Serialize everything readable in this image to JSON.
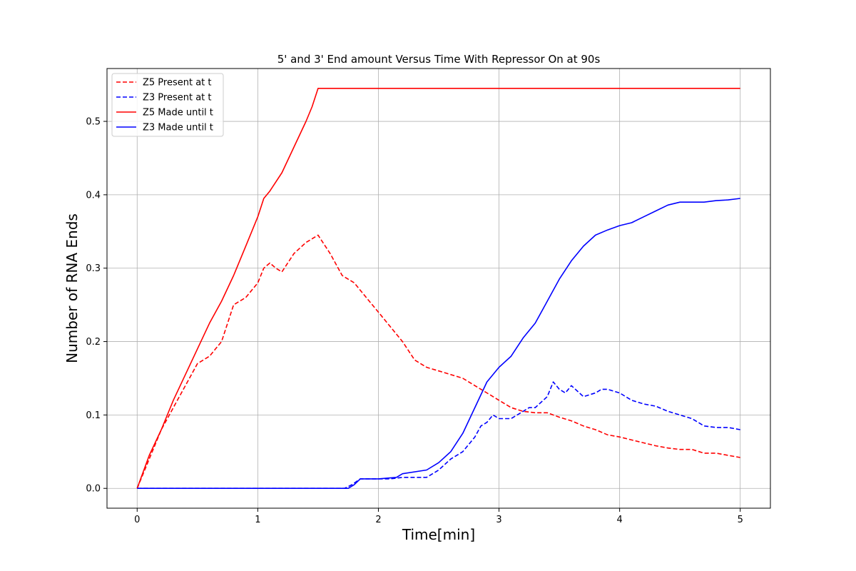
{
  "chart_data": {
    "type": "line",
    "title": "5' and 3' End amount Versus Time With Repressor On at 90s",
    "xlabel": "Time[min]",
    "ylabel": "Number of RNA Ends",
    "xlim": [
      -0.25,
      5.25
    ],
    "ylim": [
      -0.027,
      0.572
    ],
    "xticks": [
      0,
      1,
      2,
      3,
      4,
      5
    ],
    "xtick_labels": [
      "0",
      "1",
      "2",
      "3",
      "4",
      "5"
    ],
    "yticks": [
      0.0,
      0.1,
      0.2,
      0.3,
      0.4,
      0.5
    ],
    "ytick_labels": [
      "0.0",
      "0.1",
      "0.2",
      "0.3",
      "0.4",
      "0.5"
    ],
    "grid": true,
    "legend_position": "top-left",
    "series": [
      {
        "name": "Z5 Present at t",
        "color": "#ff0000",
        "style": "dashed",
        "x": [
          0,
          0.1,
          0.2,
          0.3,
          0.4,
          0.5,
          0.6,
          0.7,
          0.8,
          0.9,
          1.0,
          1.05,
          1.1,
          1.15,
          1.2,
          1.3,
          1.4,
          1.45,
          1.5,
          1.6,
          1.7,
          1.8,
          1.9,
          2.0,
          2.1,
          2.2,
          2.3,
          2.4,
          2.5,
          2.6,
          2.7,
          2.8,
          2.9,
          3.0,
          3.1,
          3.2,
          3.3,
          3.4,
          3.5,
          3.6,
          3.7,
          3.8,
          3.9,
          4.0,
          4.1,
          4.2,
          4.3,
          4.4,
          4.5,
          4.6,
          4.7,
          4.8,
          4.9,
          5.0
        ],
        "y": [
          0.0,
          0.04,
          0.08,
          0.11,
          0.14,
          0.17,
          0.18,
          0.2,
          0.25,
          0.26,
          0.28,
          0.3,
          0.307,
          0.3,
          0.295,
          0.32,
          0.335,
          0.34,
          0.345,
          0.32,
          0.29,
          0.28,
          0.26,
          0.24,
          0.22,
          0.2,
          0.175,
          0.165,
          0.16,
          0.155,
          0.15,
          0.14,
          0.13,
          0.12,
          0.11,
          0.105,
          0.103,
          0.103,
          0.097,
          0.092,
          0.085,
          0.08,
          0.073,
          0.07,
          0.066,
          0.062,
          0.058,
          0.055,
          0.053,
          0.053,
          0.048,
          0.048,
          0.045,
          0.042
        ]
      },
      {
        "name": "Z3 Present at t",
        "color": "#0000ff",
        "style": "dashed",
        "x": [
          0,
          1.72,
          1.78,
          1.85,
          2.0,
          2.1,
          2.2,
          2.4,
          2.45,
          2.5,
          2.6,
          2.7,
          2.8,
          2.85,
          2.9,
          2.95,
          3.0,
          3.1,
          3.2,
          3.25,
          3.3,
          3.4,
          3.45,
          3.5,
          3.55,
          3.6,
          3.7,
          3.8,
          3.85,
          3.9,
          4.0,
          4.1,
          4.2,
          4.3,
          4.4,
          4.5,
          4.6,
          4.7,
          4.8,
          4.9,
          5.0
        ],
        "y": [
          0.0,
          0.0,
          0.005,
          0.013,
          0.013,
          0.013,
          0.015,
          0.015,
          0.02,
          0.025,
          0.04,
          0.05,
          0.07,
          0.085,
          0.09,
          0.1,
          0.095,
          0.095,
          0.105,
          0.11,
          0.11,
          0.125,
          0.145,
          0.135,
          0.13,
          0.14,
          0.125,
          0.13,
          0.135,
          0.135,
          0.13,
          0.12,
          0.115,
          0.112,
          0.105,
          0.1,
          0.095,
          0.085,
          0.083,
          0.083,
          0.08
        ]
      },
      {
        "name": "Z5 Made until t",
        "color": "#ff0000",
        "style": "solid",
        "x": [
          0,
          0.1,
          0.2,
          0.3,
          0.4,
          0.5,
          0.6,
          0.7,
          0.8,
          0.9,
          1.0,
          1.05,
          1.1,
          1.2,
          1.3,
          1.4,
          1.45,
          1.5,
          2.0,
          3.0,
          4.0,
          5.0
        ],
        "y": [
          0.0,
          0.045,
          0.08,
          0.12,
          0.155,
          0.19,
          0.225,
          0.255,
          0.29,
          0.33,
          0.37,
          0.395,
          0.405,
          0.43,
          0.465,
          0.5,
          0.52,
          0.545,
          0.545,
          0.545,
          0.545,
          0.545
        ]
      },
      {
        "name": "Z3 Made until t",
        "color": "#0000ff",
        "style": "solid",
        "x": [
          0,
          1.75,
          1.8,
          1.85,
          2.0,
          2.15,
          2.2,
          2.4,
          2.5,
          2.6,
          2.7,
          2.8,
          2.9,
          3.0,
          3.1,
          3.2,
          3.3,
          3.4,
          3.5,
          3.6,
          3.7,
          3.8,
          3.9,
          4.0,
          4.1,
          4.2,
          4.3,
          4.4,
          4.5,
          4.6,
          4.7,
          4.8,
          4.9,
          5.0
        ],
        "y": [
          0.0,
          0.0,
          0.005,
          0.013,
          0.013,
          0.015,
          0.02,
          0.025,
          0.035,
          0.05,
          0.075,
          0.11,
          0.145,
          0.165,
          0.18,
          0.205,
          0.225,
          0.255,
          0.285,
          0.31,
          0.33,
          0.345,
          0.352,
          0.358,
          0.362,
          0.37,
          0.378,
          0.386,
          0.39,
          0.39,
          0.39,
          0.392,
          0.393,
          0.395
        ]
      }
    ]
  }
}
